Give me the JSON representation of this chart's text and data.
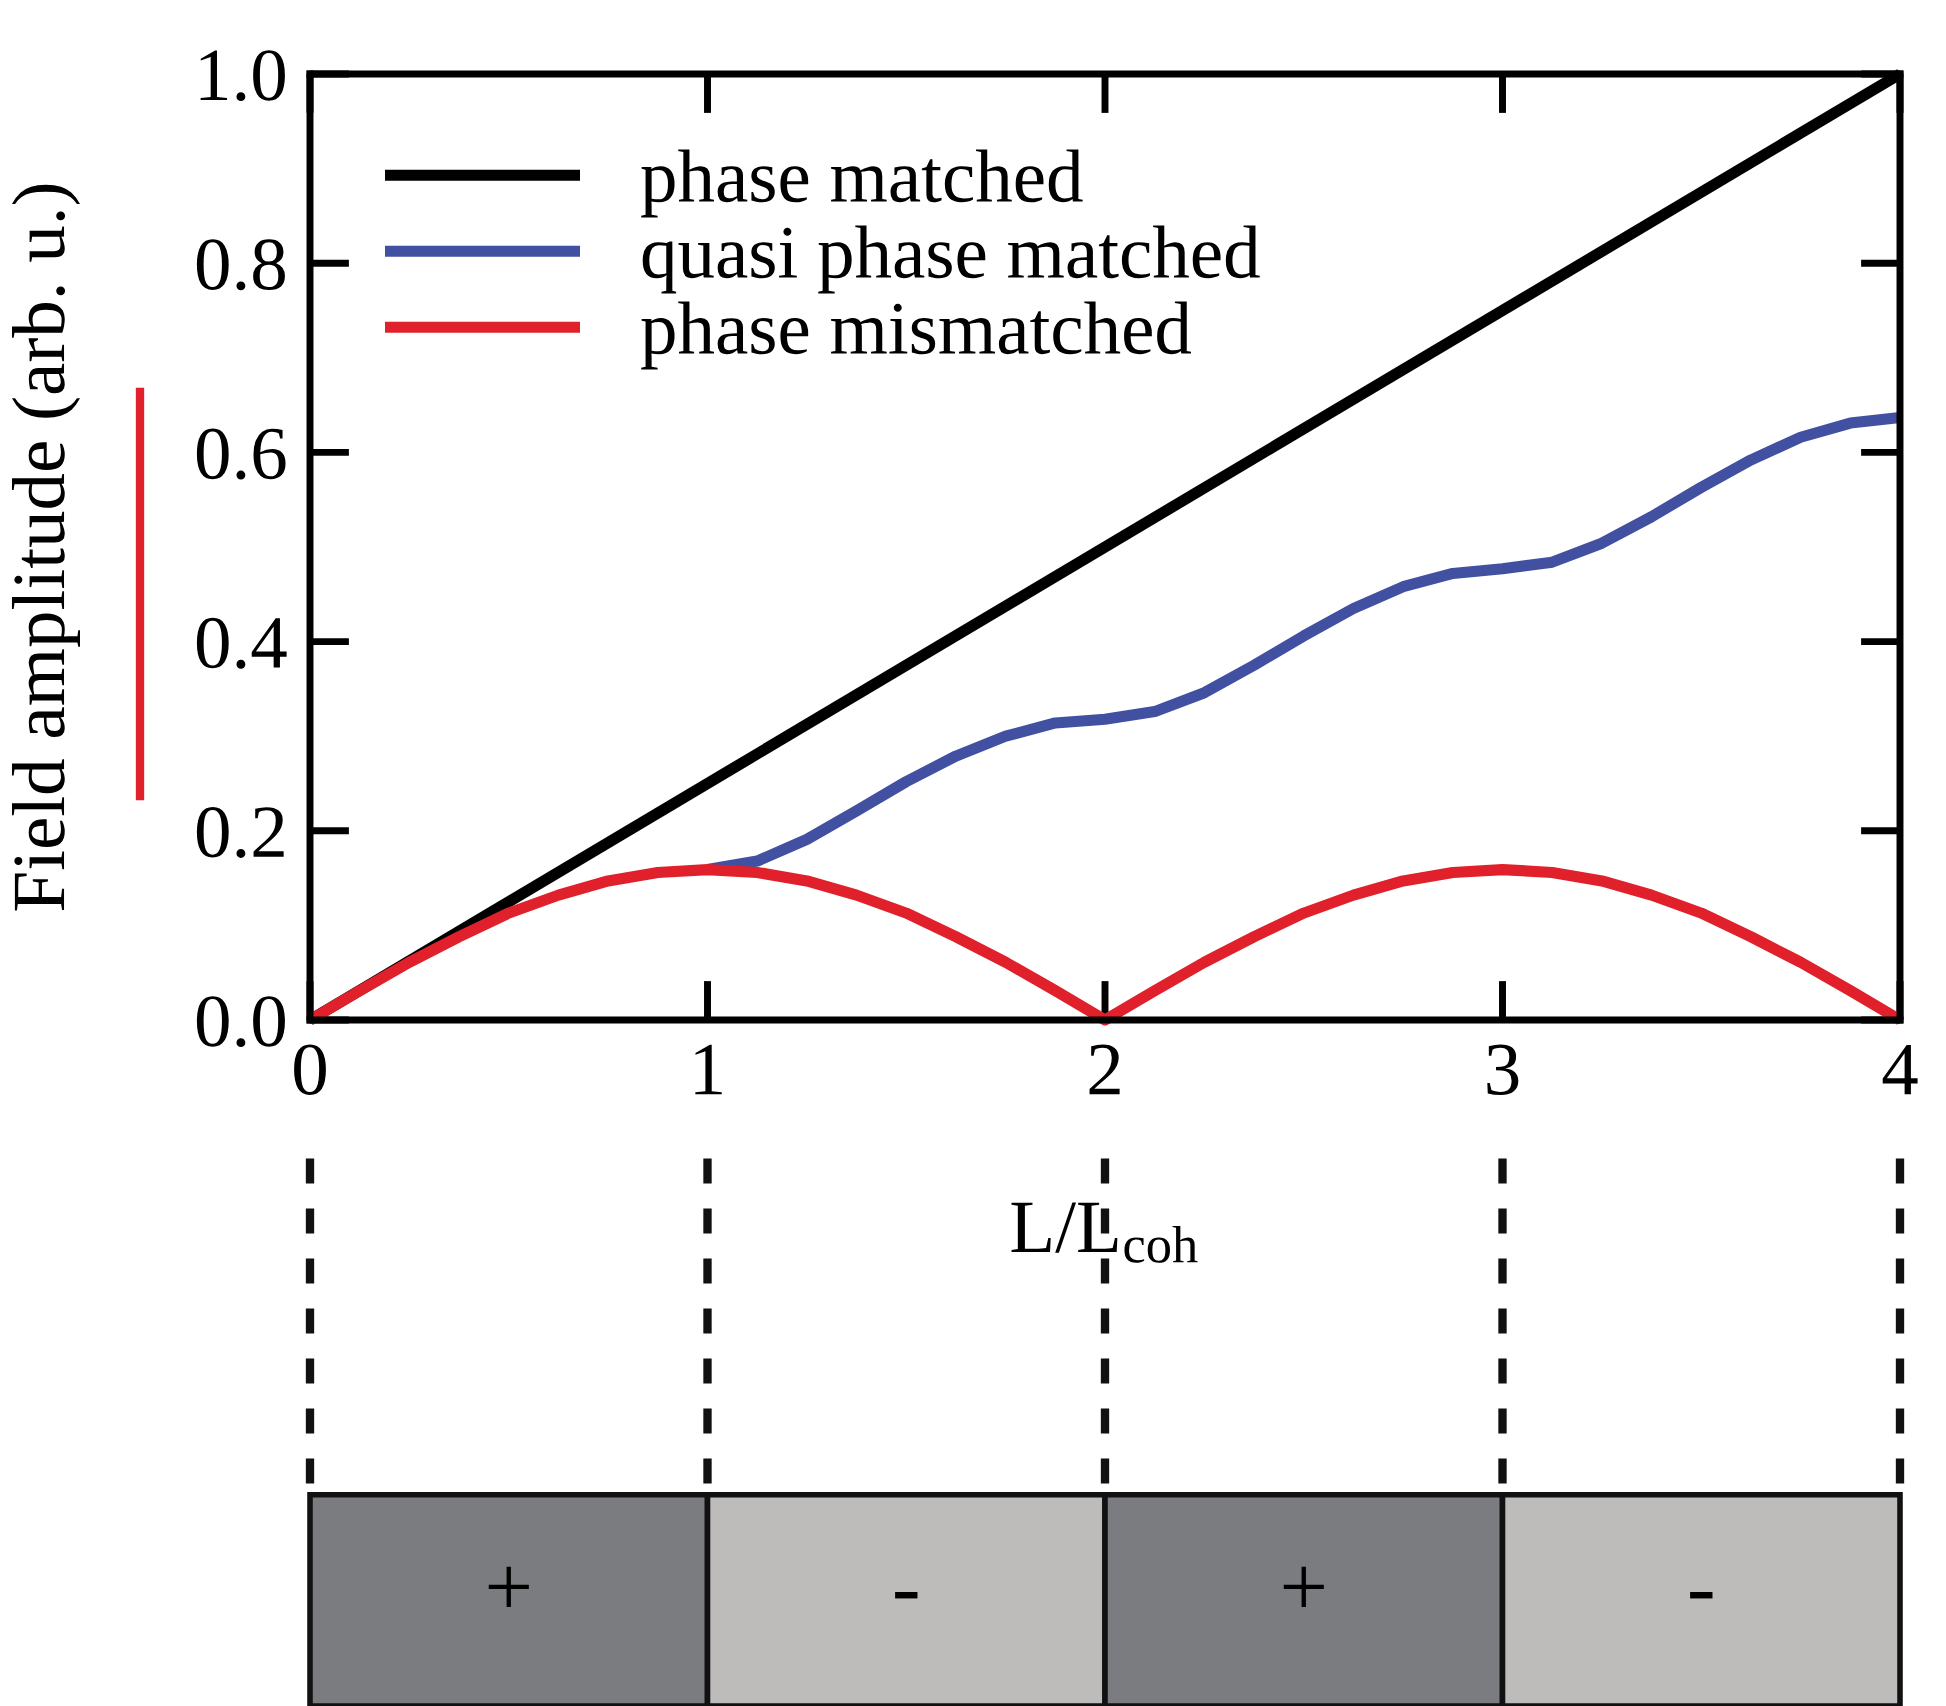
{
  "chart_data": {
    "type": "line",
    "ylabel": "Field amplitude (arb. u.)",
    "xlabel": "L/L$_{coh}$",
    "xlim": [
      0,
      4
    ],
    "xticks": [
      0,
      1,
      2,
      3,
      4
    ],
    "ylim": [
      0,
      1.0
    ],
    "yticks": [
      {
        "value": 0,
        "label": "0.0"
      },
      0.2,
      0.4,
      0.6,
      0.8,
      {
        "value": 1,
        "label": "1.0"
      }
    ],
    "grid": false,
    "legend": "top left",
    "annotations": [
      "+",
      "-",
      "+",
      "-"
    ],
    "series": [
      {
        "name": "phase matched",
        "color": "#000000",
        "x": [
          0,
          4
        ],
        "values": [
          0,
          1.0
        ]
      },
      {
        "name": "quasi phase matched",
        "color": "#4150a0",
        "x": [
          1,
          1.125,
          1.25,
          1.375,
          1.5,
          1.625,
          1.75,
          1.875,
          2,
          2.125,
          2.25,
          2.375,
          2.5,
          2.625,
          2.75,
          2.875,
          3,
          3.125,
          3.25,
          3.375,
          3.5,
          3.625,
          3.75,
          3.875,
          4
        ],
        "values": [
          0.159,
          0.168,
          0.191,
          0.221,
          0.252,
          0.279,
          0.3,
          0.314,
          0.318,
          0.326,
          0.346,
          0.375,
          0.406,
          0.435,
          0.458,
          0.472,
          0.477,
          0.484,
          0.504,
          0.532,
          0.563,
          0.592,
          0.616,
          0.631,
          0.637
        ]
      },
      {
        "name": "phase mismatched",
        "color": "#e0202a",
        "x": [
          0,
          0.125,
          0.25,
          0.375,
          0.5,
          0.625,
          0.75,
          0.875,
          1,
          1.125,
          1.25,
          1.375,
          1.5,
          1.625,
          1.75,
          1.875,
          2,
          2.125,
          2.25,
          2.375,
          2.5,
          2.625,
          2.75,
          2.875,
          3,
          3.125,
          3.25,
          3.375,
          3.5,
          3.625,
          3.75,
          3.875,
          4
        ],
        "values": [
          0,
          0.031,
          0.061,
          0.088,
          0.113,
          0.132,
          0.147,
          0.156,
          0.159,
          0.156,
          0.147,
          0.132,
          0.113,
          0.088,
          0.061,
          0.031,
          0,
          0.031,
          0.061,
          0.088,
          0.113,
          0.132,
          0.147,
          0.156,
          0.159,
          0.156,
          0.147,
          0.132,
          0.113,
          0.088,
          0.061,
          0.031,
          0
        ]
      }
    ]
  }
}
